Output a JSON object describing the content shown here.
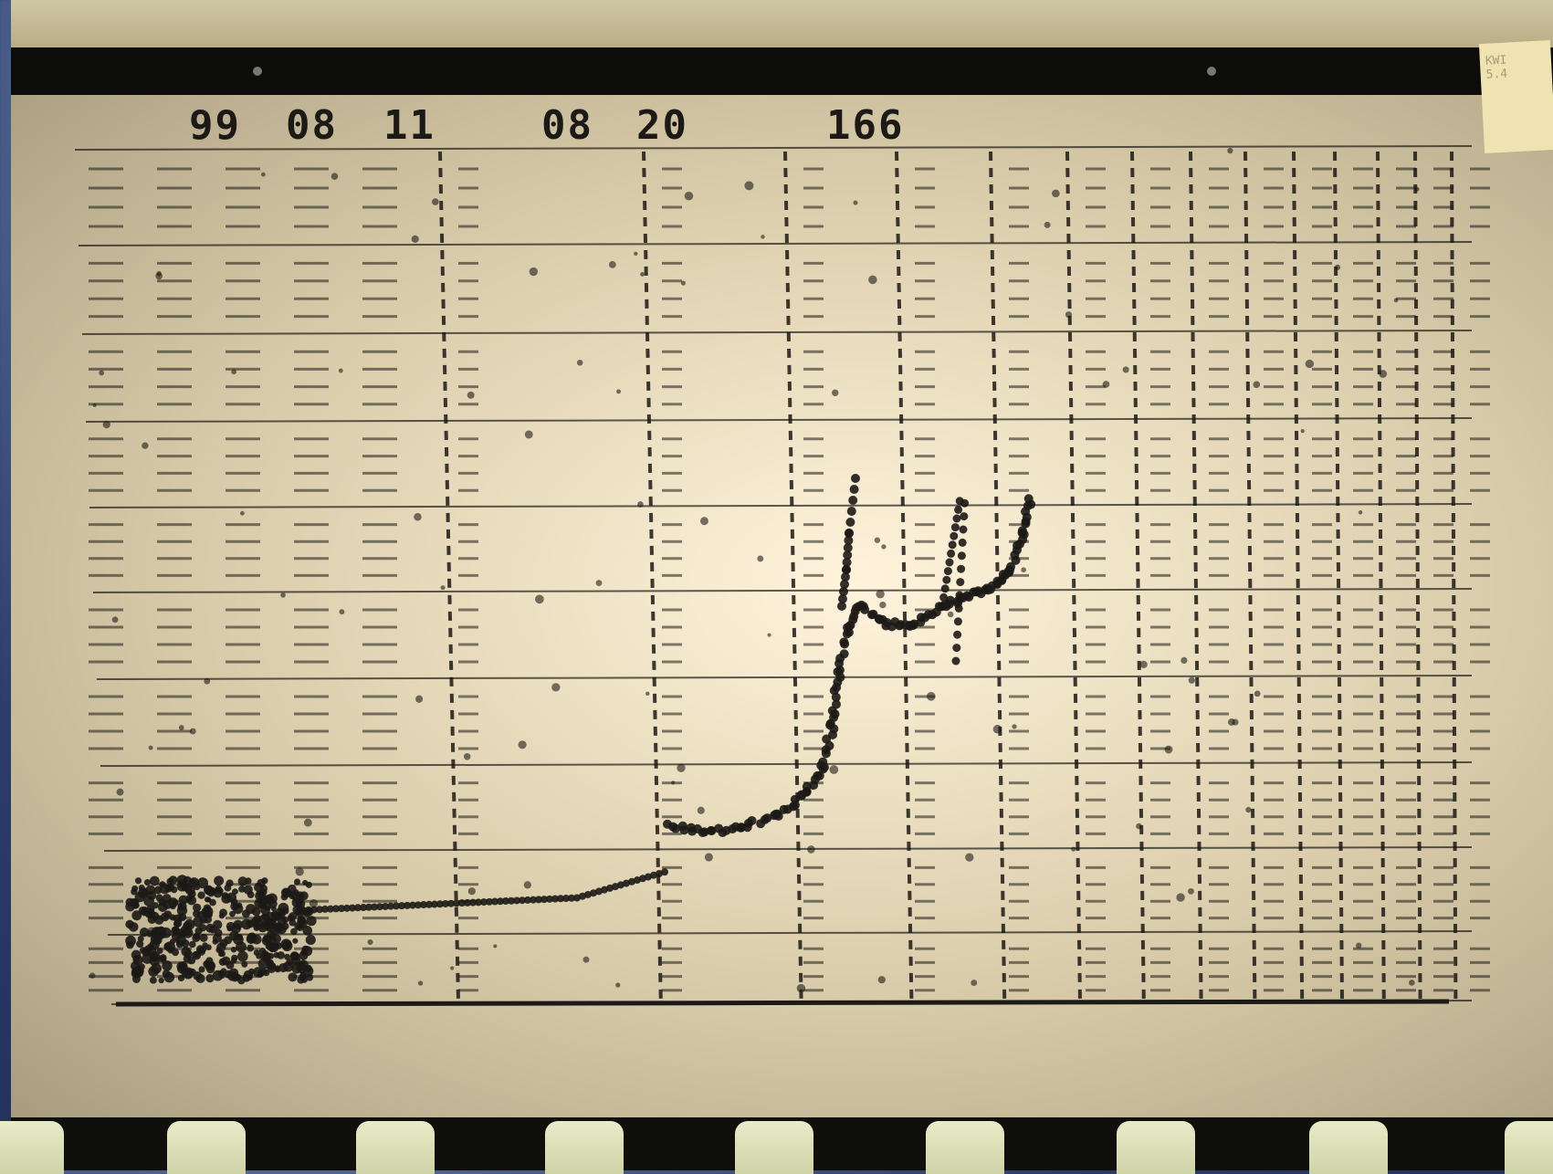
{
  "header": {
    "year": "99",
    "month": "08",
    "day": "11",
    "hour": "08",
    "minute": "20",
    "station_code": "166"
  },
  "corner_tag": {
    "text": "KWI\n5.4"
  },
  "colors": {
    "paper": "#ece0c2",
    "ink": "#1c1a16",
    "film": "#0c0c0a",
    "sprocket": "#e0e4bd"
  }
}
